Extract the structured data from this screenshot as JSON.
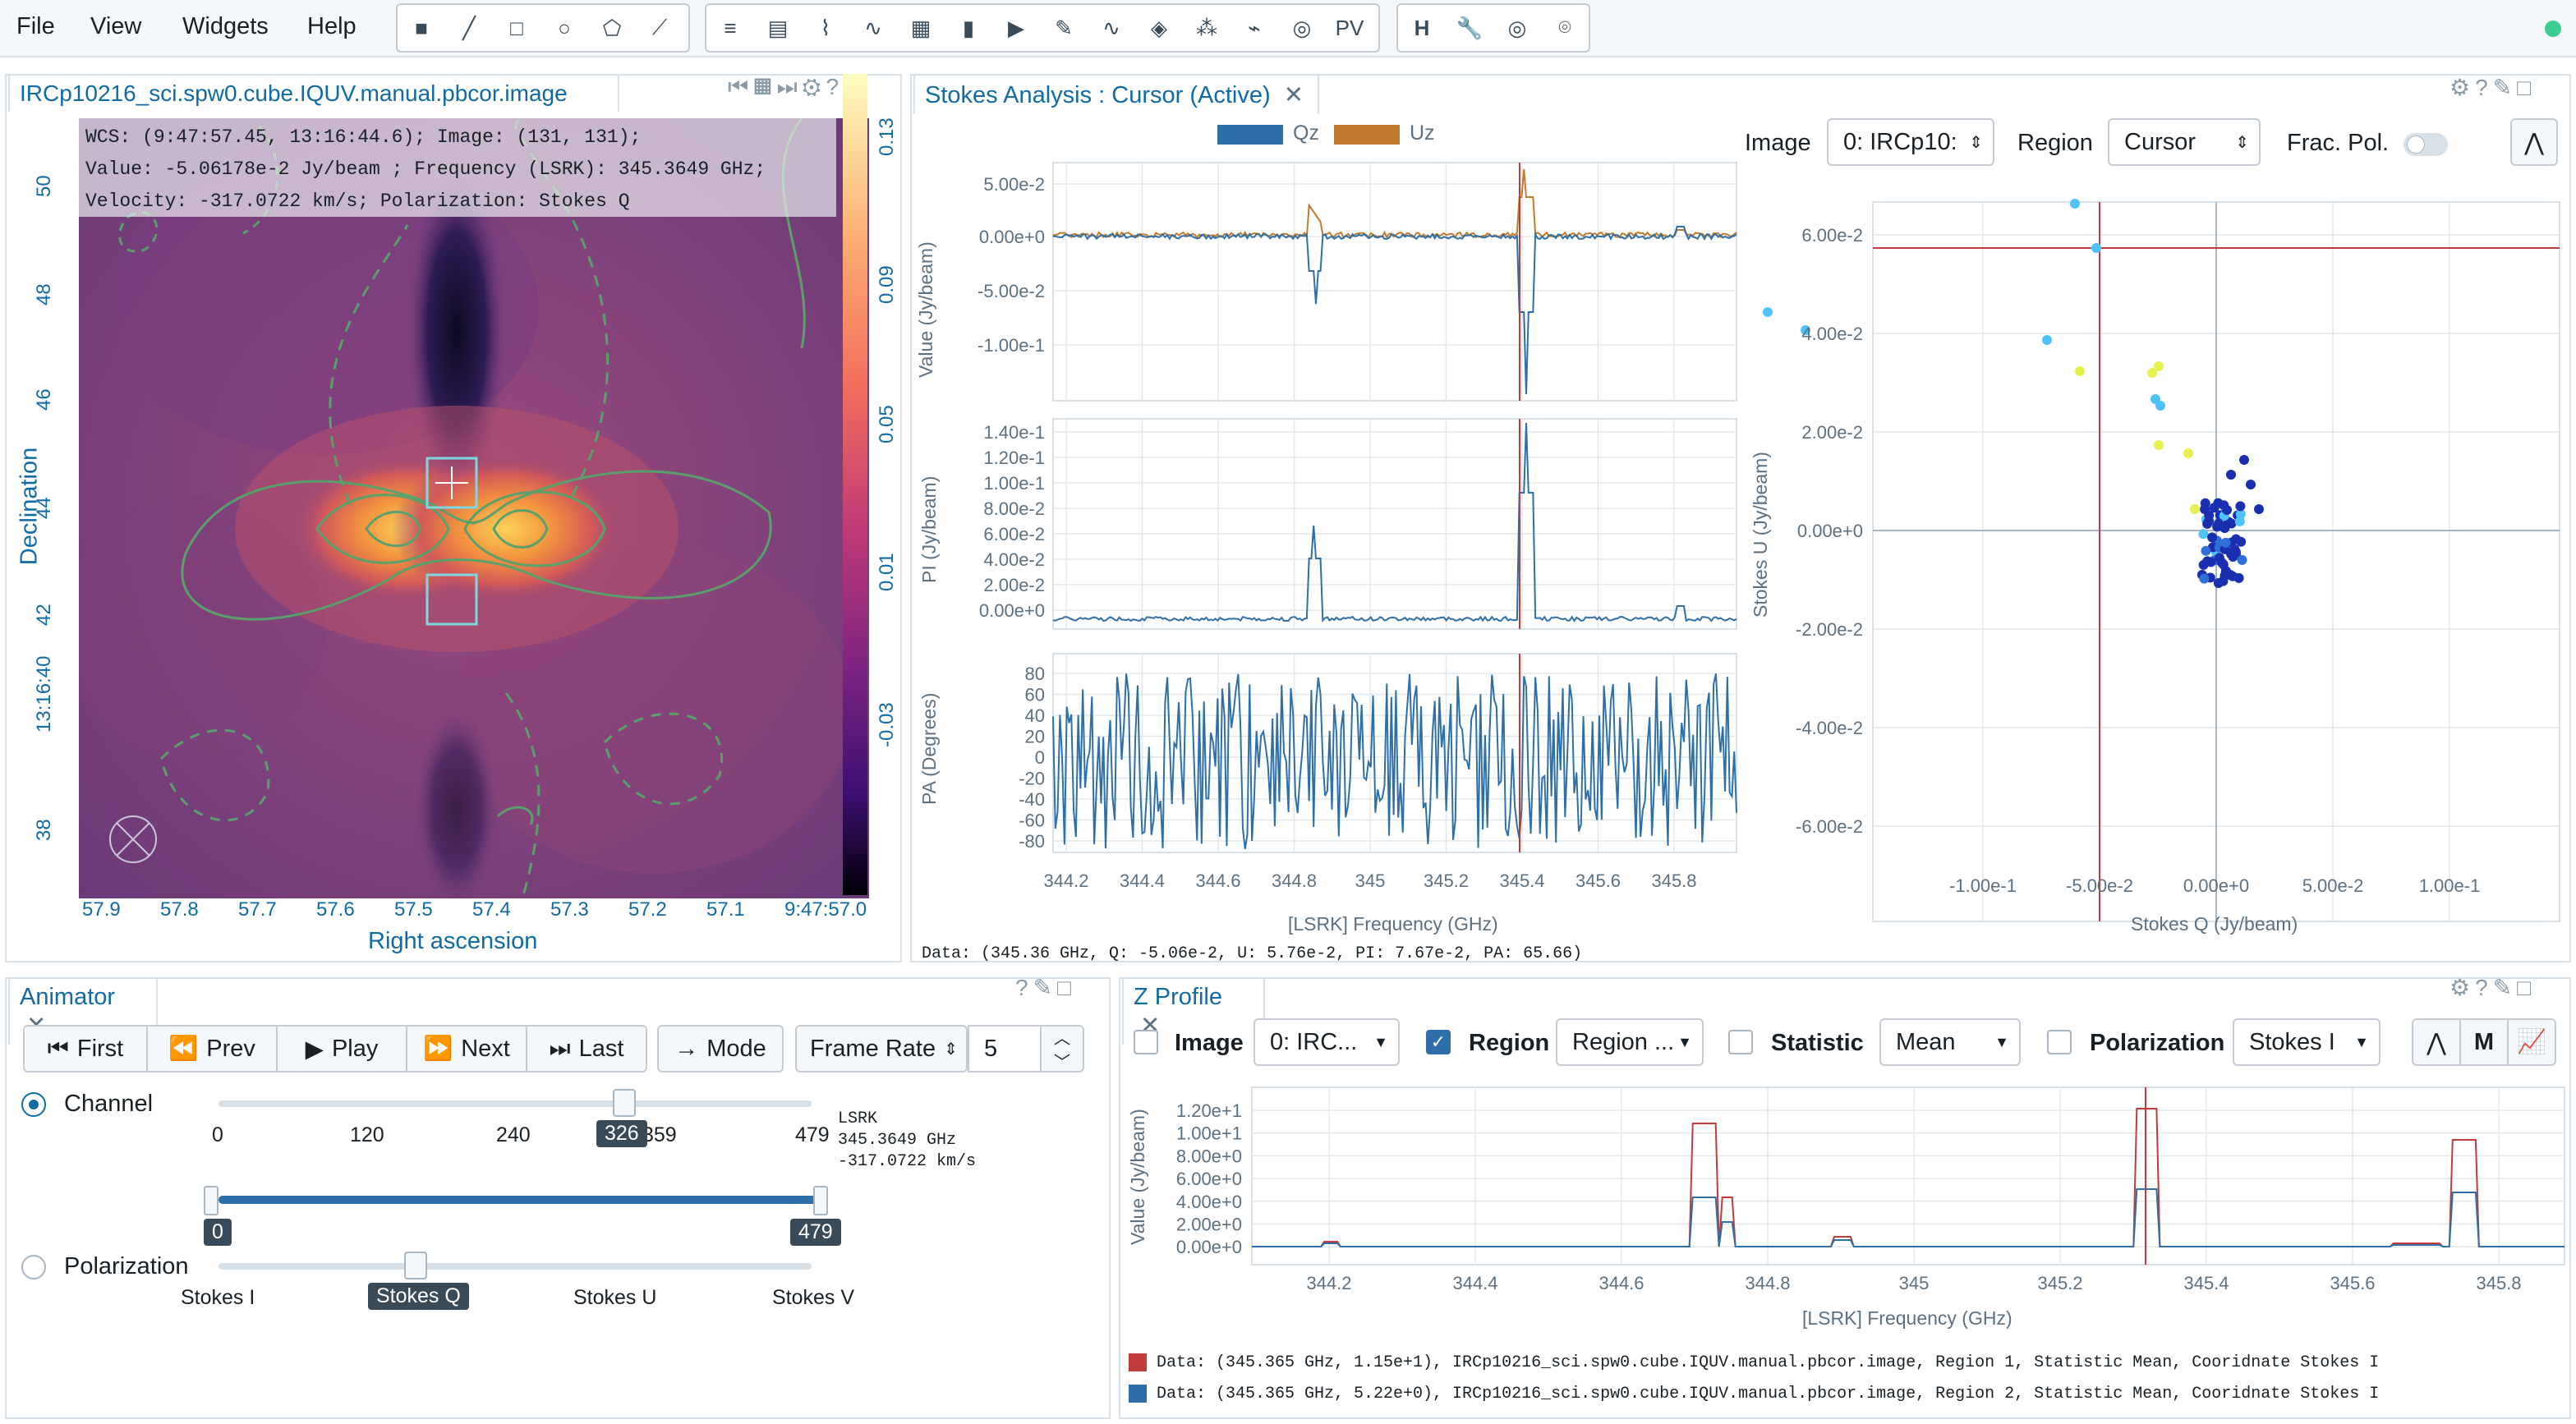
{
  "menu": {
    "file": "File",
    "view": "View",
    "widgets": "Widgets",
    "help": "Help"
  },
  "toolbar": {
    "pv_label": "PV",
    "h_label": "H"
  },
  "image_panel": {
    "tab_title": "IRCp10216_sci.spw0.cube.IQUV.manual.pbcor.image",
    "cursor_info": [
      "WCS: (9:47:57.45, 13:16:44.6); Image: (131, 131);",
      "Value: -5.06178e-2 Jy/beam ; Frequency (LSRK): 345.3649 GHz;",
      "Velocity: -317.0722 km/s; Polarization: Stokes Q"
    ],
    "x_ticks": [
      "57.9",
      "57.8",
      "57.7",
      "57.6",
      "57.5",
      "57.4",
      "57.3",
      "57.2",
      "57.1",
      "9:47:57.0"
    ],
    "y_ticks": [
      "50",
      "48",
      "46",
      "44",
      "42",
      "13:16:40",
      "38"
    ],
    "x_title": "Right ascension",
    "y_title": "Declination",
    "colorbar_ticks": [
      "0.13",
      "0.09",
      "0.05",
      "0.01",
      "-0.03"
    ]
  },
  "stokes_panel": {
    "tab_title": "Stokes Analysis : Cursor (Active)",
    "legend": [
      "Qz",
      "Uz"
    ],
    "image_label": "Image",
    "image_value": "0: IRCp10:",
    "region_label": "Region",
    "region_value": "Cursor",
    "frac_label": "Frac. Pol.",
    "top_ylabel": "Value (Jy/beam)",
    "top_yticks": [
      "5.00e-2",
      "0.00e+0",
      "-5.00e-2",
      "-1.00e-1"
    ],
    "mid_ylabel": "PI (Jy/beam)",
    "mid_yticks": [
      "1.40e-1",
      "1.20e-1",
      "1.00e-1",
      "8.00e-2",
      "6.00e-2",
      "4.00e-2",
      "2.00e-2",
      "0.00e+0"
    ],
    "bot_ylabel": "PA (Degrees)",
    "bot_yticks": [
      "80",
      "60",
      "40",
      "20",
      "0",
      "-20",
      "-40",
      "-60",
      "-80"
    ],
    "x_ticks": [
      "344.2",
      "344.4",
      "344.6",
      "344.8",
      "345",
      "345.2",
      "345.4",
      "345.6",
      "345.8"
    ],
    "x_title": "[LSRK] Frequency (GHz)",
    "scatter_yticks": [
      "6.00e-2",
      "4.00e-2",
      "2.00e-2",
      "0.00e+0",
      "-2.00e-2",
      "-4.00e-2",
      "-6.00e-2"
    ],
    "scatter_xticks": [
      "-1.00e-1",
      "-5.00e-2",
      "0.00e+0",
      "5.00e-2",
      "1.00e-1"
    ],
    "scatter_xlabel": "Stokes Q (Jy/beam)",
    "scatter_ylabel": "Stokes U (Jy/beam)",
    "data_line": "Data: (345.36 GHz, Q: -5.06e-2, U: 5.76e-2, PI: 7.67e-2, PA: 65.66)"
  },
  "animator": {
    "tab_title": "Animator",
    "first": "First",
    "prev": "Prev",
    "play": "Play",
    "next": "Next",
    "last": "Last",
    "mode": "Mode",
    "frame_rate_label": "Frame Rate",
    "frame_rate_value": "5",
    "channel_label": "Channel",
    "channel_ticks": [
      "0",
      "120",
      "240",
      "359",
      "479"
    ],
    "channel_value": "326",
    "info": [
      "LSRK",
      "345.3649 GHz",
      "-317.0722 km/s"
    ],
    "range_min": "0",
    "range_max": "479",
    "polarization_label": "Polarization",
    "pol_options": [
      "Stokes I",
      "Stokes Q",
      "Stokes U",
      "Stokes V"
    ],
    "pol_selected": "Stokes Q"
  },
  "zprofile": {
    "tab_title": "Z Profile",
    "image_label": "Image",
    "image_value": "0: IRC...",
    "region_label": "Region",
    "region_value": "Region ...",
    "statistic_label": "Statistic",
    "statistic_value": "Mean",
    "polarization_label": "Polarization",
    "polarization_value": "Stokes I",
    "m_label": "M",
    "yticks": [
      "1.20e+1",
      "1.00e+1",
      "8.00e+0",
      "6.00e+0",
      "4.00e+0",
      "2.00e+0",
      "0.00e+0"
    ],
    "ylabel": "Value (Jy/beam)",
    "xticks": [
      "344.2",
      "344.4",
      "344.6",
      "344.8",
      "345",
      "345.2",
      "345.4",
      "345.6",
      "345.8"
    ],
    "xlabel": "[LSRK] Frequency (GHz)",
    "legend": [
      {
        "text": "Data: (345.365 GHz, 1.15e+1), IRCp10216_sci.spw0.cube.IQUV.manual.pbcor.image, Region 1, Statistic Mean, Cooridnate Stokes I",
        "color": "#c23b3b"
      },
      {
        "text": "Data: (345.365 GHz, 5.22e+0), IRCp10216_sci.spw0.cube.IQUV.manual.pbcor.image, Region 2, Statistic Mean, Cooridnate Stokes I",
        "color": "#2d6fa6"
      }
    ]
  },
  "colors": {
    "accent": "#106ba3",
    "qz": "#2d6fa6",
    "uz": "#c17a2c",
    "status_green": "#3dcc91"
  }
}
